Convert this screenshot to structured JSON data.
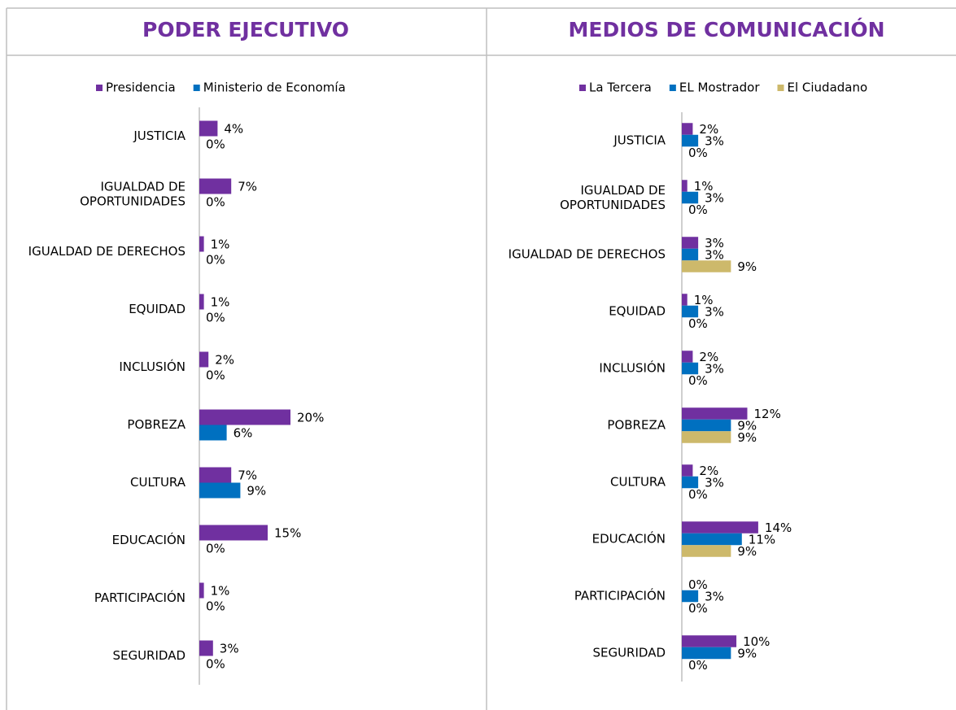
{
  "chart_data": [
    {
      "type": "bar",
      "orientation": "horizontal",
      "title": "PODER EJECUTIVO",
      "categories": [
        "JUSTICIA",
        "IGUALDAD DE\nOPORTUNIDADES",
        "IGUALDAD DE DERECHOS",
        "EQUIDAD",
        "INCLUSIÓN",
        "POBREZA",
        "CULTURA",
        "EDUCACIÓN",
        "PARTICIPACIÓN",
        "SEGURIDAD"
      ],
      "xlim": [
        0,
        60
      ],
      "series": [
        {
          "name": "Presidencia",
          "color": "#7030a0",
          "values": [
            4,
            7,
            1,
            1,
            2,
            20,
            7,
            15,
            1,
            3
          ],
          "value_labels": [
            "4%",
            "7%",
            "1%",
            "1%",
            "2%",
            "20%",
            "7%",
            "15%",
            "1%",
            "3%"
          ]
        },
        {
          "name": "Ministerio de Economía",
          "color": "#0070c0",
          "values": [
            0,
            0,
            0,
            0,
            0,
            6,
            9,
            0,
            0,
            0
          ],
          "value_labels": [
            "0%",
            "0%",
            "0%",
            "0%",
            "0%",
            "6%",
            "9%",
            "0%",
            "0%",
            "0%"
          ]
        }
      ]
    },
    {
      "type": "bar",
      "orientation": "horizontal",
      "title": "MEDIOS DE COMUNICACIÓN",
      "categories": [
        "JUSTICIA",
        "IGUALDAD DE\nOPORTUNIDADES",
        "IGUALDAD DE DERECHOS",
        "EQUIDAD",
        "INCLUSIÓN",
        "POBREZA",
        "CULTURA",
        "EDUCACIÓN",
        "PARTICIPACIÓN",
        "SEGURIDAD"
      ],
      "xlim": [
        0,
        48
      ],
      "series": [
        {
          "name": "La Tercera",
          "color": "#7030a0",
          "values": [
            2,
            1,
            3,
            1,
            2,
            12,
            2,
            14,
            0,
            10
          ],
          "value_labels": [
            "2%",
            "1%",
            "3%",
            "1%",
            "2%",
            "12%",
            "2%",
            "14%",
            "0%",
            "10%"
          ]
        },
        {
          "name": "EL Mostrador",
          "color": "#0070c0",
          "values": [
            3,
            3,
            3,
            3,
            3,
            9,
            3,
            11,
            3,
            9
          ],
          "value_labels": [
            "3%",
            "3%",
            "3%",
            "3%",
            "3%",
            "9%",
            "3%",
            "11%",
            "3%",
            "9%"
          ]
        },
        {
          "name": "El Ciudadano",
          "color": "#cdb96b",
          "values": [
            0,
            0,
            9,
            0,
            0,
            9,
            0,
            9,
            0,
            0
          ],
          "value_labels": [
            "0%",
            "0%",
            "9%",
            "0%",
            "0%",
            "9%",
            "0%",
            "9%",
            "0%",
            "0%"
          ]
        }
      ]
    }
  ]
}
